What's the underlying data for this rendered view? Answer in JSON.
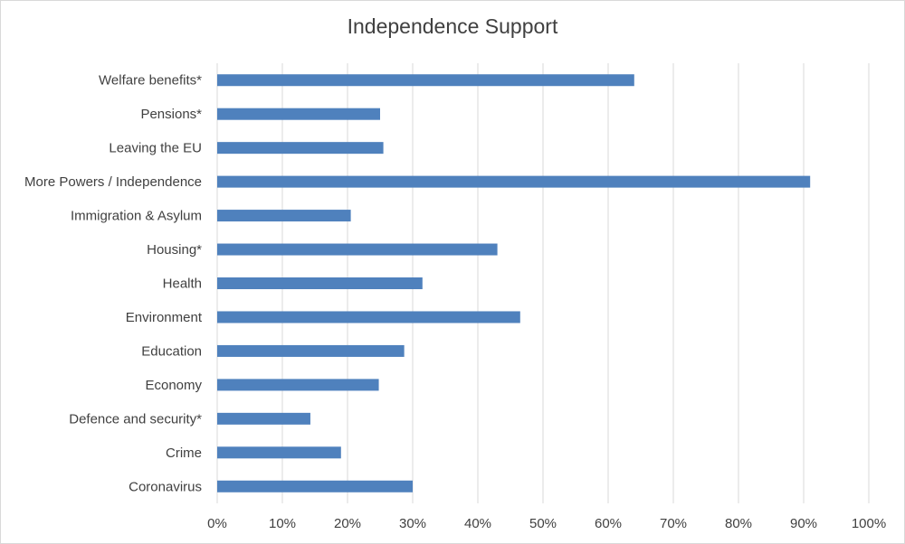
{
  "chart_data": {
    "type": "bar",
    "orientation": "horizontal",
    "title": "Independence Support",
    "xlabel": "",
    "ylabel": "",
    "categories": [
      "Welfare benefits*",
      "Pensions*",
      "Leaving the EU",
      "More Powers / Independence",
      "Immigration & Asylum",
      "Housing*",
      "Health",
      "Environment",
      "Education",
      "Economy",
      "Defence and security*",
      "Crime",
      "Coronavirus"
    ],
    "values": [
      0.64,
      0.25,
      0.255,
      0.91,
      0.205,
      0.43,
      0.315,
      0.465,
      0.287,
      0.248,
      0.143,
      0.19,
      0.3
    ],
    "xlim": [
      0,
      1
    ],
    "ticks": [
      0,
      0.1,
      0.2,
      0.3,
      0.4,
      0.5,
      0.6,
      0.7,
      0.8,
      0.9,
      1.0
    ],
    "tick_labels": [
      "0%",
      "10%",
      "20%",
      "30%",
      "40%",
      "50%",
      "60%",
      "70%",
      "80%",
      "90%",
      "100%"
    ],
    "grid": true,
    "legend": "none",
    "colors": {
      "bar": "#4f81bd",
      "grid": "#d9d9d9",
      "text": "#404040"
    }
  }
}
